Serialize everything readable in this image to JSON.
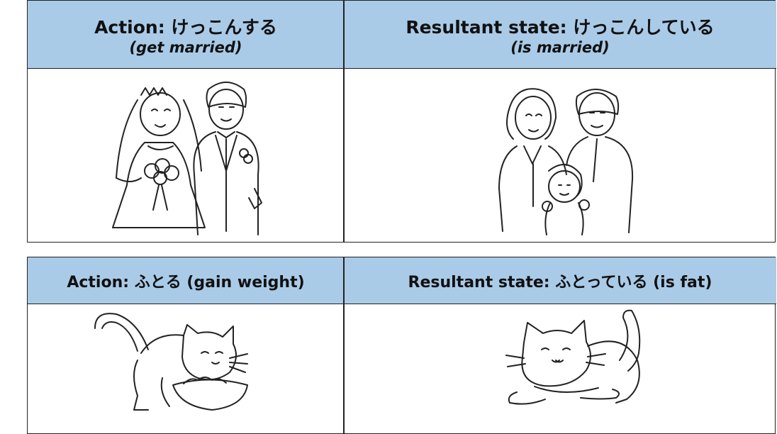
{
  "tables": [
    {
      "headers": [
        {
          "line1": "Action: けっこんする",
          "line2": "(get married)"
        },
        {
          "line1": "Resultant state: けっこんしている",
          "line2": "(is married)"
        }
      ]
    },
    {
      "headers": [
        {
          "line1": "Action: ふとる (gain weight)"
        },
        {
          "line1": "Resultant state: ふとっている (is fat)"
        }
      ]
    }
  ]
}
